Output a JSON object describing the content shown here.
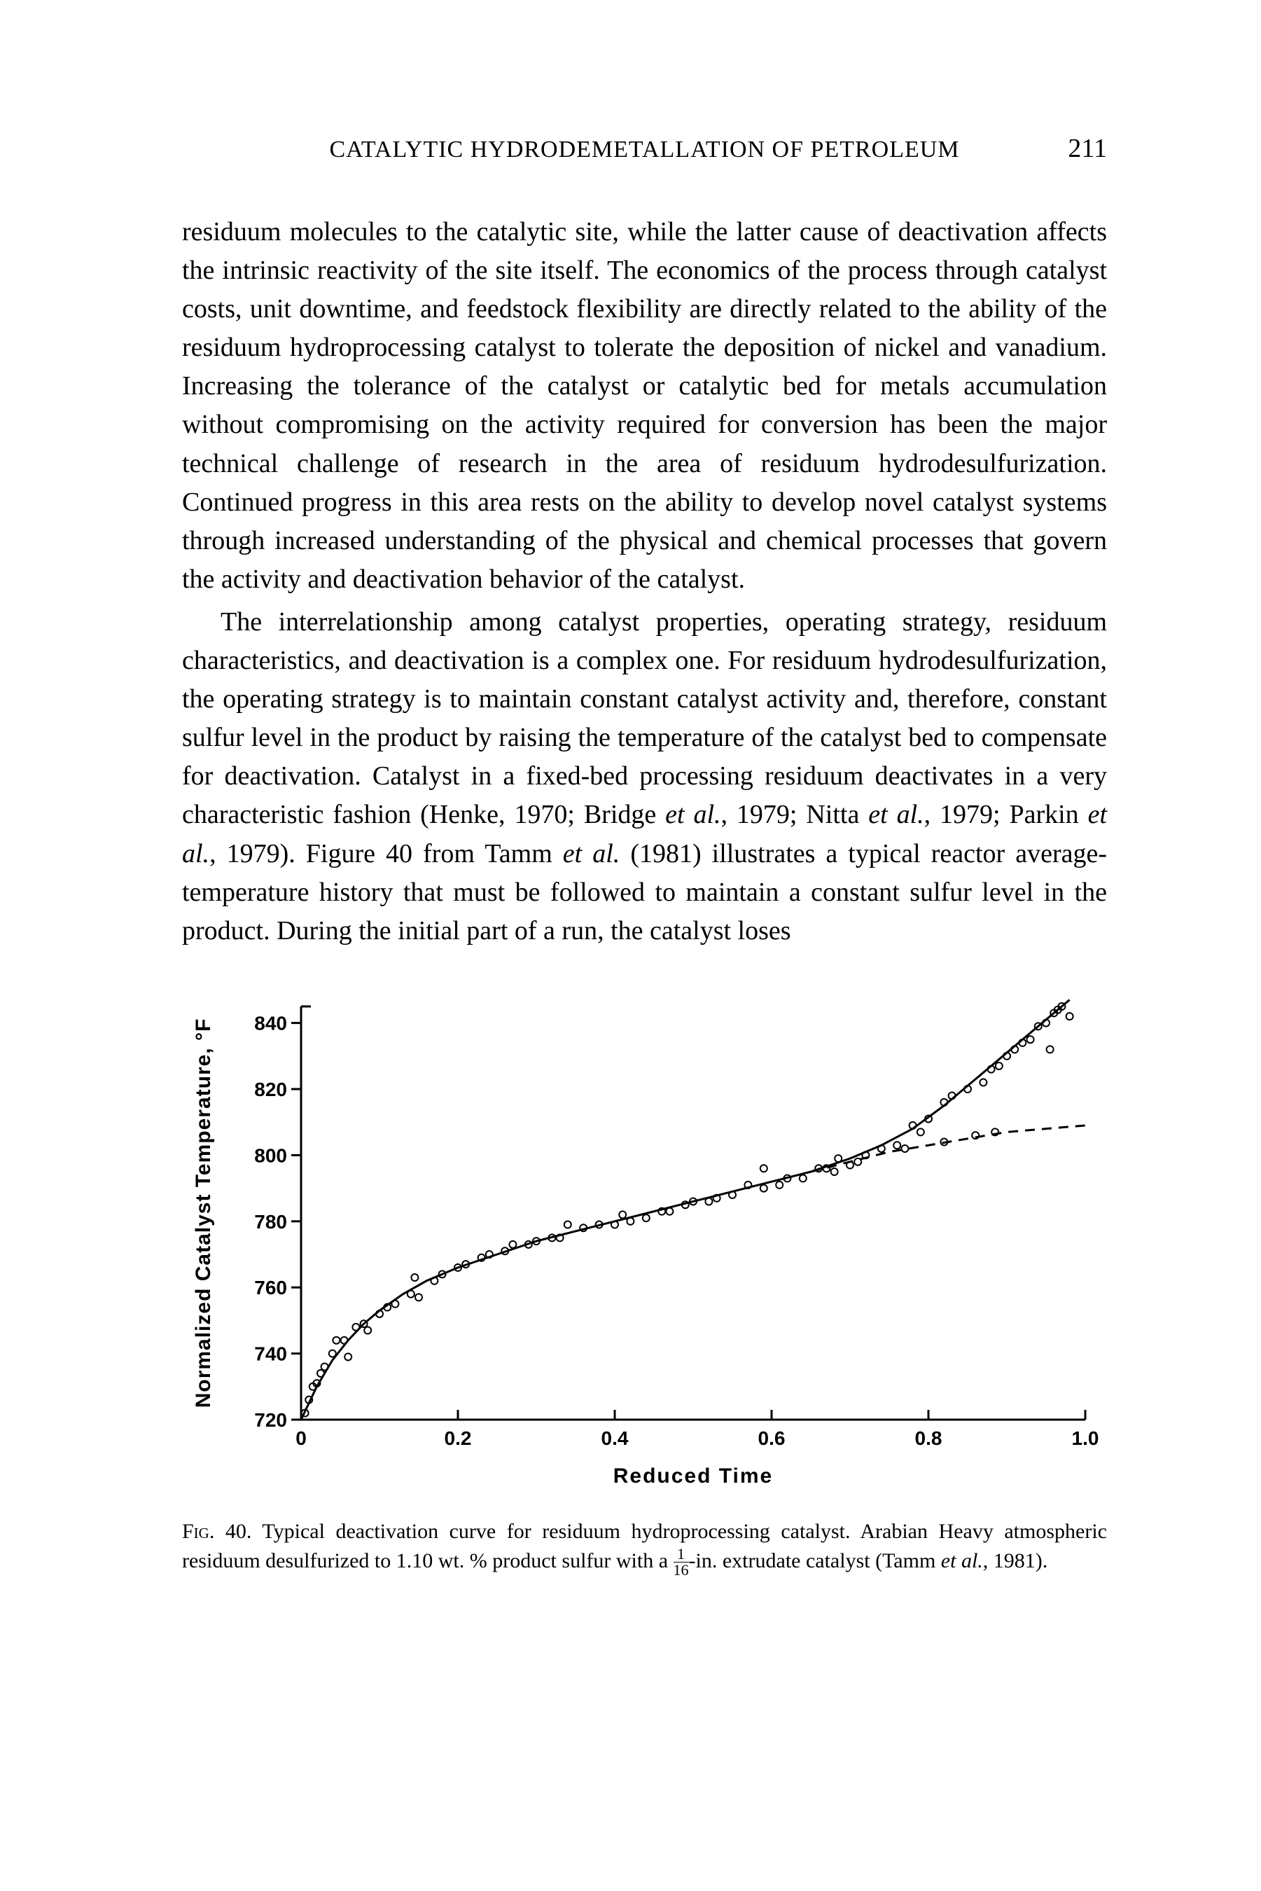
{
  "header": {
    "running_title": "CATALYTIC HYDRODEMETALLATION OF PETROLEUM",
    "page_number": "211"
  },
  "paragraphs": {
    "p1": "residuum molecules to the catalytic site, while the latter cause of deactivation affects the intrinsic reactivity of the site itself. The economics of the process through catalyst costs, unit downtime, and feedstock flexibility are directly related to the ability of the residuum hydroprocessing catalyst to tolerate the deposition of nickel and vanadium. Increasing the tolerance of the catalyst or catalytic bed for metals accumulation without compromising on the activity required for conversion has been the major technical challenge of research in the area of residuum hydrodesulfurization. Continued progress in this area rests on the ability to develop novel catalyst systems through increased understanding of the physical and chemical processes that govern the activity and deactivation behavior of the catalyst.",
    "p2_a": "The interrelationship among catalyst properties, operating strategy, residuum characteristics, and deactivation is a complex one. For residuum hydrodesulfurization, the operating strategy is to maintain constant catalyst activity and, therefore, constant sulfur level in the product by raising the temperature of the catalyst bed to compensate for deactivation. Catalyst in a fixed-bed processing residuum deactivates in a very characteristic fashion (Henke, 1970; Bridge ",
    "p2_b": "et al.",
    "p2_c": ", 1979; Nitta ",
    "p2_d": "et al.",
    "p2_e": ", 1979; Parkin ",
    "p2_f": "et al.",
    "p2_g": ", 1979). Figure 40 from Tamm ",
    "p2_h": "et al.",
    "p2_i": " (1981) illustrates a typical reactor average-temperature history that must be followed to maintain a constant sulfur level in the product. During the initial part of a run, the catalyst loses"
  },
  "figure": {
    "type": "scatter-line",
    "xlabel": "Reduced Time",
    "ylabel": "Normalized Catalyst Temperature, °F",
    "xlim": [
      0,
      1.0
    ],
    "ylim": [
      720,
      845
    ],
    "xticks": [
      0,
      0.2,
      0.4,
      0.6,
      0.8,
      1.0
    ],
    "xtick_labels": [
      "0",
      "0.2",
      "0.4",
      "0.6",
      "0.8",
      "1.0"
    ],
    "yticks": [
      720,
      740,
      760,
      780,
      800,
      820,
      840
    ],
    "ytick_labels": [
      "720",
      "740",
      "760",
      "780",
      "800",
      "820",
      "840"
    ],
    "marker_style": "open-circle",
    "marker_color": "#000000",
    "line_color": "#000000",
    "line_width": 3,
    "axis_width": 3,
    "background_color": "#ffffff",
    "font_family": "Arial",
    "font_weight": "bold",
    "label_fontsize": 30,
    "tick_fontsize": 28,
    "points": [
      [
        0.005,
        722
      ],
      [
        0.01,
        726
      ],
      [
        0.015,
        730
      ],
      [
        0.02,
        731
      ],
      [
        0.025,
        734
      ],
      [
        0.03,
        736
      ],
      [
        0.04,
        740
      ],
      [
        0.045,
        744
      ],
      [
        0.055,
        744
      ],
      [
        0.06,
        739
      ],
      [
        0.07,
        748
      ],
      [
        0.08,
        749
      ],
      [
        0.085,
        747
      ],
      [
        0.1,
        752
      ],
      [
        0.11,
        754
      ],
      [
        0.12,
        755
      ],
      [
        0.14,
        758
      ],
      [
        0.145,
        763
      ],
      [
        0.15,
        757
      ],
      [
        0.17,
        762
      ],
      [
        0.18,
        764
      ],
      [
        0.2,
        766
      ],
      [
        0.21,
        767
      ],
      [
        0.23,
        769
      ],
      [
        0.24,
        770
      ],
      [
        0.26,
        771
      ],
      [
        0.27,
        773
      ],
      [
        0.29,
        773
      ],
      [
        0.3,
        774
      ],
      [
        0.32,
        775
      ],
      [
        0.33,
        775
      ],
      [
        0.34,
        779
      ],
      [
        0.36,
        778
      ],
      [
        0.38,
        779
      ],
      [
        0.4,
        779
      ],
      [
        0.41,
        782
      ],
      [
        0.42,
        780
      ],
      [
        0.44,
        781
      ],
      [
        0.46,
        783
      ],
      [
        0.47,
        783
      ],
      [
        0.49,
        785
      ],
      [
        0.5,
        786
      ],
      [
        0.52,
        786
      ],
      [
        0.53,
        787
      ],
      [
        0.55,
        788
      ],
      [
        0.57,
        791
      ],
      [
        0.59,
        790
      ],
      [
        0.59,
        796
      ],
      [
        0.61,
        791
      ],
      [
        0.62,
        793
      ],
      [
        0.64,
        793
      ],
      [
        0.66,
        796
      ],
      [
        0.67,
        796
      ],
      [
        0.68,
        795
      ],
      [
        0.685,
        799
      ],
      [
        0.7,
        797
      ],
      [
        0.71,
        798
      ],
      [
        0.72,
        800
      ],
      [
        0.74,
        802
      ],
      [
        0.76,
        803
      ],
      [
        0.77,
        802
      ],
      [
        0.78,
        809
      ],
      [
        0.79,
        807
      ],
      [
        0.8,
        811
      ],
      [
        0.82,
        816
      ],
      [
        0.82,
        804
      ],
      [
        0.83,
        818
      ],
      [
        0.86,
        806
      ],
      [
        0.85,
        820
      ],
      [
        0.87,
        822
      ],
      [
        0.88,
        826
      ],
      [
        0.885,
        807
      ],
      [
        0.89,
        827
      ],
      [
        0.9,
        830
      ],
      [
        0.91,
        832
      ],
      [
        0.92,
        834
      ],
      [
        0.93,
        835
      ],
      [
        0.94,
        839
      ],
      [
        0.95,
        840
      ],
      [
        0.955,
        832
      ],
      [
        0.96,
        843
      ],
      [
        0.965,
        844
      ],
      [
        0.97,
        845
      ],
      [
        0.98,
        842
      ]
    ],
    "solid_curve": [
      [
        0.0,
        720
      ],
      [
        0.02,
        730
      ],
      [
        0.04,
        738
      ],
      [
        0.06,
        744
      ],
      [
        0.08,
        749
      ],
      [
        0.1,
        753
      ],
      [
        0.13,
        758
      ],
      [
        0.16,
        762
      ],
      [
        0.2,
        766
      ],
      [
        0.25,
        770
      ],
      [
        0.3,
        774
      ],
      [
        0.35,
        777
      ],
      [
        0.4,
        780
      ],
      [
        0.45,
        783
      ],
      [
        0.5,
        786
      ],
      [
        0.55,
        789
      ],
      [
        0.6,
        792
      ],
      [
        0.65,
        795
      ],
      [
        0.7,
        799
      ],
      [
        0.74,
        803
      ],
      [
        0.78,
        808
      ],
      [
        0.82,
        815
      ],
      [
        0.85,
        821
      ],
      [
        0.88,
        827
      ],
      [
        0.9,
        831
      ],
      [
        0.92,
        835
      ],
      [
        0.94,
        839
      ],
      [
        0.96,
        843
      ],
      [
        0.98,
        847
      ]
    ],
    "dashed_curve": [
      [
        0.65,
        795
      ],
      [
        0.7,
        798
      ],
      [
        0.75,
        801
      ],
      [
        0.8,
        803
      ],
      [
        0.85,
        805
      ],
      [
        0.9,
        807
      ],
      [
        0.95,
        808
      ],
      [
        1.0,
        809
      ]
    ]
  },
  "caption": {
    "fig_label": "Fig. 40.",
    "text_a": "   Typical deactivation curve for residuum hydroprocessing catalyst. Arabian Heavy atmospheric residuum desulfurized to 1.10 wt. % product sulfur with a ",
    "fraction_num": "1",
    "fraction_den": "16",
    "text_b": "-in. extrudate catalyst (Tamm ",
    "text_c": "et al.",
    "text_d": ", 1981)."
  }
}
